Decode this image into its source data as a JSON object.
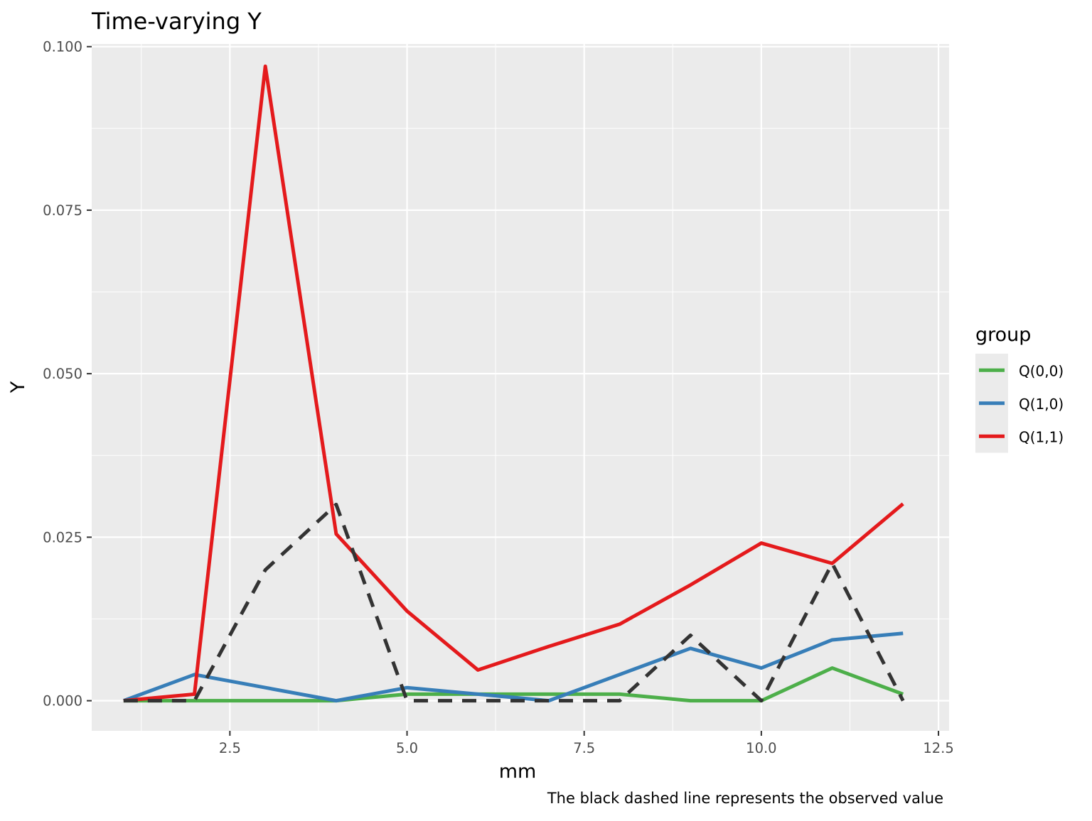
{
  "chart_data": {
    "type": "line",
    "title": "Time-varying Y",
    "xlabel": "mm",
    "ylabel": "Y",
    "caption": "The black dashed line represents the observed value",
    "xlim": [
      0.55,
      12.65
    ],
    "ylim": [
      -0.0046,
      0.1004
    ],
    "x_ticks": [
      2.5,
      5.0,
      7.5,
      10.0,
      12.5
    ],
    "x_tick_labels": [
      "2.5",
      "5.0",
      "7.5",
      "10.0",
      "12.5"
    ],
    "y_ticks": [
      0.0,
      0.025,
      0.05,
      0.075,
      0.1
    ],
    "y_tick_labels": [
      "0.000",
      "0.025",
      "0.050",
      "0.075",
      "0.100"
    ],
    "grid": true,
    "legend": {
      "title": "group",
      "placement": "right"
    },
    "x": [
      1,
      2,
      3,
      4,
      5,
      6,
      7,
      8,
      9,
      10,
      11,
      12
    ],
    "series": [
      {
        "name": "Q(0,0)",
        "color": "#4DAF4A",
        "values": [
          0.0,
          0.0,
          0.0,
          0.0,
          0.001,
          0.001,
          0.001,
          0.001,
          0.0,
          0.0,
          0.005,
          0.001
        ]
      },
      {
        "name": "Q(1,0)",
        "color": "#377EB8",
        "values": [
          0.0,
          0.004,
          0.002,
          0.0,
          0.002,
          0.001,
          0.0,
          0.004,
          0.008,
          0.005,
          0.0093,
          0.0103
        ]
      },
      {
        "name": "Q(1,1)",
        "color": "#E41A1C",
        "values": [
          0.0,
          0.001,
          0.097,
          0.0255,
          0.0137,
          0.0047,
          0.0083,
          0.0117,
          0.0177,
          0.0241,
          0.021,
          0.0301
        ]
      }
    ],
    "observed": {
      "color": "#333333",
      "style": "dashed",
      "values": [
        0.0,
        0.0,
        0.02,
        0.03,
        0.0,
        0.0,
        0.0,
        0.0,
        0.01,
        0.0,
        0.021,
        0.0
      ]
    }
  }
}
